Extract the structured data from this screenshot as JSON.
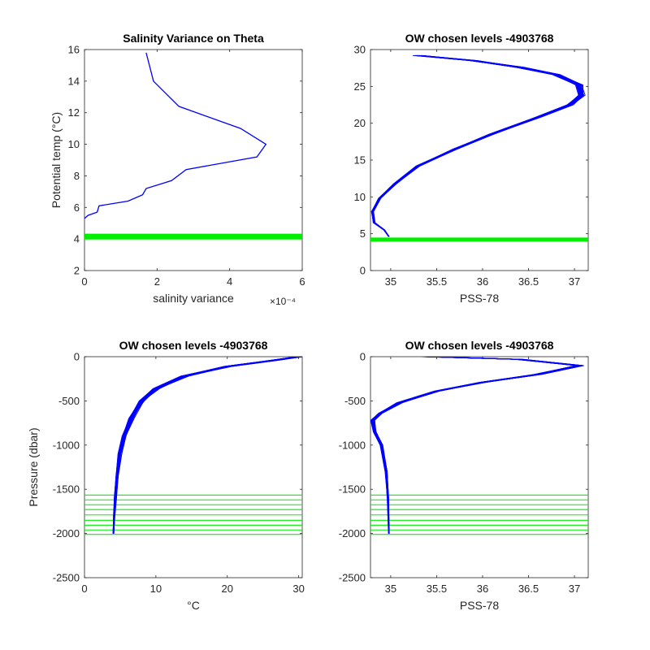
{
  "colors": {
    "profile": "#0000ff",
    "levels": "#00ee00",
    "axis": "#262626"
  },
  "chart_data": [
    {
      "id": "tl",
      "type": "line",
      "title": "Salinity Variance on Theta",
      "xlabel": "salinity variance",
      "ylabel": "Potential temp (°C)",
      "xlim": [
        0,
        6
      ],
      "ylim": [
        2,
        16
      ],
      "xticks": [
        0,
        2,
        4,
        6
      ],
      "yticks": [
        2,
        4,
        6,
        8,
        10,
        12,
        14,
        16
      ],
      "x_scale_label": "×10⁻⁴",
      "series": [
        {
          "values": [
            [
              1.7,
              15.8
            ],
            [
              1.9,
              14.0
            ],
            [
              2.6,
              12.4
            ],
            [
              4.3,
              11.0
            ],
            [
              5.0,
              10.0
            ],
            [
              4.75,
              9.2
            ],
            [
              2.8,
              8.4
            ],
            [
              2.4,
              7.7
            ],
            [
              1.7,
              7.2
            ],
            [
              1.6,
              6.8
            ],
            [
              1.2,
              6.4
            ],
            [
              0.4,
              6.1
            ],
            [
              0.35,
              5.7
            ],
            [
              0.1,
              5.5
            ],
            [
              0.0,
              5.3
            ]
          ]
        }
      ],
      "horizontal_levels": [
        4.05,
        4.15,
        4.25
      ]
    },
    {
      "id": "tr",
      "type": "line",
      "title": "OW chosen levels -4903768",
      "xlabel": "PSS-78",
      "ylabel": "",
      "xlim": [
        34.78,
        37.15
      ],
      "ylim": [
        0,
        30
      ],
      "xticks": [
        35,
        35.5,
        36,
        36.5,
        37
      ],
      "yticks": [
        0,
        5,
        10,
        15,
        20,
        25,
        30
      ],
      "profile": {
        "points": [
          [
            35.3,
            29.2
          ],
          [
            35.9,
            28.5
          ],
          [
            36.4,
            27.6
          ],
          [
            36.8,
            26.6
          ],
          [
            37.05,
            25.2
          ],
          [
            37.08,
            23.8
          ],
          [
            36.95,
            22.5
          ],
          [
            36.6,
            20.8
          ],
          [
            36.1,
            18.5
          ],
          [
            35.7,
            16.5
          ],
          [
            35.3,
            14.2
          ],
          [
            35.05,
            11.8
          ],
          [
            34.88,
            9.8
          ],
          [
            34.8,
            8.0
          ],
          [
            34.82,
            6.5
          ],
          [
            34.93,
            5.5
          ],
          [
            34.98,
            4.6
          ]
        ],
        "variants": 24
      },
      "horizontal_levels": [
        4.1,
        4.3
      ]
    },
    {
      "id": "bl",
      "type": "line",
      "title": "OW chosen levels -4903768",
      "xlabel": "°C",
      "ylabel": "Pressure (dbar)",
      "xlim": [
        0,
        30.5
      ],
      "ylim": [
        -2500,
        0
      ],
      "xticks": [
        0,
        10,
        20,
        30
      ],
      "yticks": [
        -2500,
        -2000,
        -1500,
        -1000,
        -500,
        0
      ],
      "profile": {
        "points": [
          [
            30,
            0
          ],
          [
            26.5,
            -40
          ],
          [
            20,
            -110
          ],
          [
            14,
            -220
          ],
          [
            10,
            -360
          ],
          [
            8,
            -500
          ],
          [
            6.5,
            -700
          ],
          [
            5.5,
            -900
          ],
          [
            4.9,
            -1100
          ],
          [
            4.5,
            -1350
          ],
          [
            4.3,
            -1600
          ],
          [
            4.15,
            -1800
          ],
          [
            4.05,
            -2000
          ]
        ],
        "variants": 24
      },
      "horizontal_levels": [
        -1565,
        -1620,
        -1675,
        -1730,
        -1790,
        -1850,
        -1905,
        -1960,
        -2010
      ]
    },
    {
      "id": "br",
      "type": "line",
      "title": "OW chosen levels -4903768",
      "xlabel": "PSS-78",
      "ylabel": "",
      "xlim": [
        34.78,
        37.15
      ],
      "ylim": [
        -2500,
        0
      ],
      "xticks": [
        35,
        35.5,
        36,
        36.5,
        37
      ],
      "yticks": [
        -2500,
        -2000,
        -1500,
        -1000,
        -500,
        0
      ],
      "profile": {
        "points": [
          [
            35.4,
            0
          ],
          [
            36.4,
            -30
          ],
          [
            37.05,
            -100
          ],
          [
            36.6,
            -200
          ],
          [
            36.0,
            -290
          ],
          [
            35.5,
            -390
          ],
          [
            35.1,
            -520
          ],
          [
            34.88,
            -640
          ],
          [
            34.8,
            -720
          ],
          [
            34.82,
            -850
          ],
          [
            34.9,
            -1000
          ],
          [
            34.95,
            -1300
          ],
          [
            34.97,
            -1600
          ],
          [
            34.98,
            -2000
          ]
        ],
        "variants": 24
      },
      "horizontal_levels": [
        -1565,
        -1620,
        -1675,
        -1730,
        -1790,
        -1850,
        -1905,
        -1960,
        -2010
      ]
    }
  ]
}
